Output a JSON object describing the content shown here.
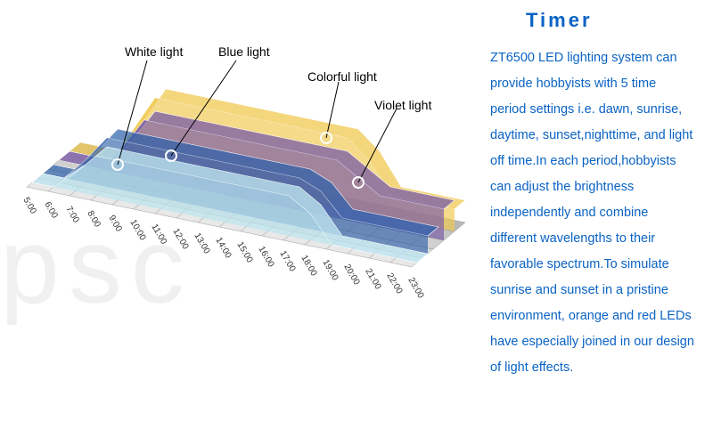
{
  "title": "Timer",
  "title_color": "#0a63c4",
  "body_color": "#0a63c4",
  "body_text": "ZT6500 LED lighting system can provide hobbyists with 5 time period settings i.e. dawn, sunrise, daytime, sunset,nighttime, and light off time.In each period,hobbyists can adjust the brightness independently and combine different wavelengths to their favorable spectrum.To simulate sunrise and sunset in a pristine environment, orange and red LEDs have especially joined in our design of light effects.",
  "watermark_text": "psc",
  "legends": {
    "white": {
      "label": "White light",
      "color": "#cce8f0"
    },
    "blue": {
      "label": "Blue light",
      "color": "#2b5faa"
    },
    "colorful": {
      "label": "Colorful light",
      "color": "#f0c850"
    },
    "violet": {
      "label": "Violet light",
      "color": "#7a5ba8"
    }
  },
  "chart": {
    "time_labels": [
      "5:00",
      "6:00",
      "7:00",
      "8:00",
      "9:00",
      "10:00",
      "11:00",
      "12:00",
      "13:00",
      "14:00",
      "15:00",
      "16:00",
      "17:00",
      "18:00",
      "19:00",
      "20:00",
      "21:00",
      "22:00",
      "23:00"
    ],
    "grid_color": "#888",
    "grid_fill_colors": [
      "#e8e8e8",
      "#dcdcdc",
      "#d0d0d0",
      "#c4c4c4",
      "#b8b8b8"
    ],
    "layers": {
      "colorful": {
        "color": "#f0c850",
        "opacity": 0.75
      },
      "violet": {
        "color": "#7a5ba8",
        "opacity": 0.75
      },
      "blue": {
        "color": "#2b5faa",
        "opacity": 0.7
      },
      "white": {
        "color": "#bde4ef",
        "opacity": 0.8
      }
    },
    "marker_stroke": "#ffffff"
  }
}
